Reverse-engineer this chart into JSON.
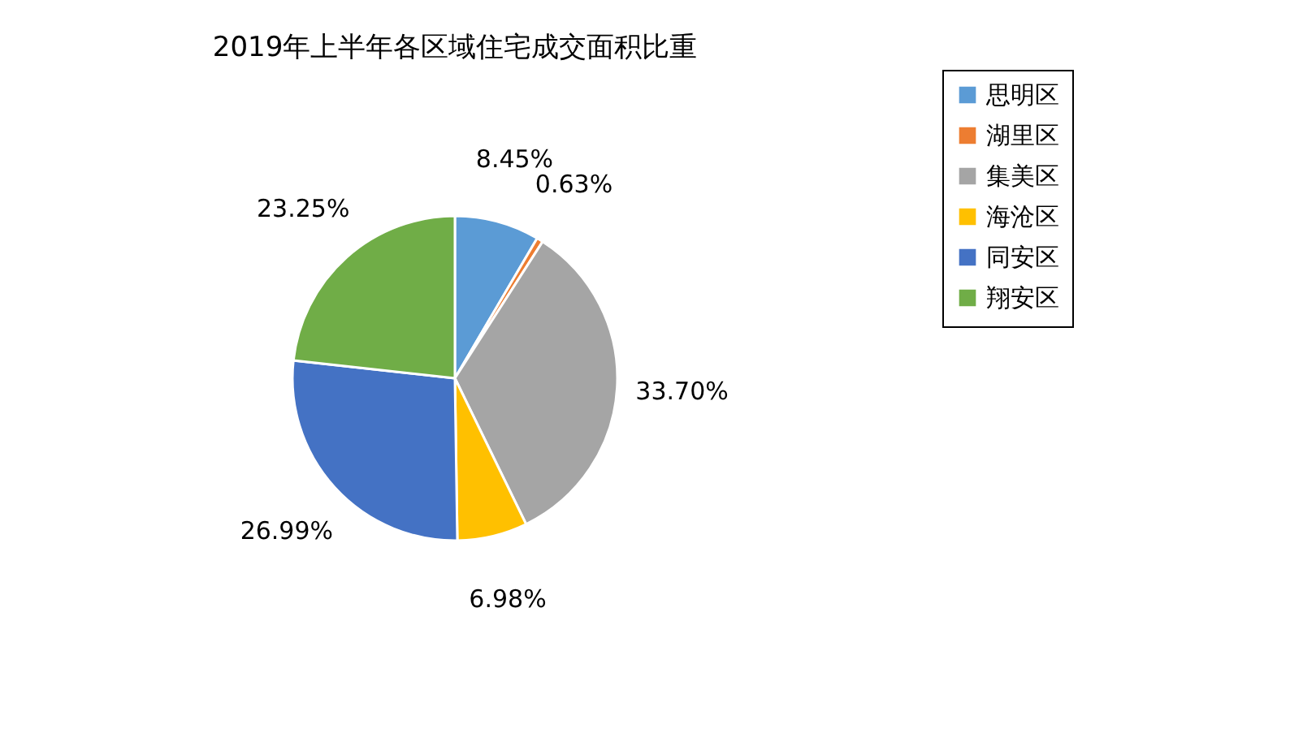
{
  "chart_data": {
    "type": "pie",
    "title": "2019年上半年各区域住宅成交面积比重",
    "categories": [
      "思明区",
      "湖里区",
      "集美区",
      "海沧区",
      "同安区",
      "翔安区"
    ],
    "values": [
      8.45,
      0.63,
      33.7,
      6.98,
      26.99,
      23.25
    ],
    "value_labels": [
      "8.45%",
      "0.63%",
      "33.70%",
      "6.98%",
      "26.99%",
      "23.25%"
    ],
    "colors": [
      "#5b9bd5",
      "#ed7d31",
      "#a5a5a5",
      "#ffc000",
      "#4472c4",
      "#70ad47"
    ],
    "legend": "right"
  }
}
